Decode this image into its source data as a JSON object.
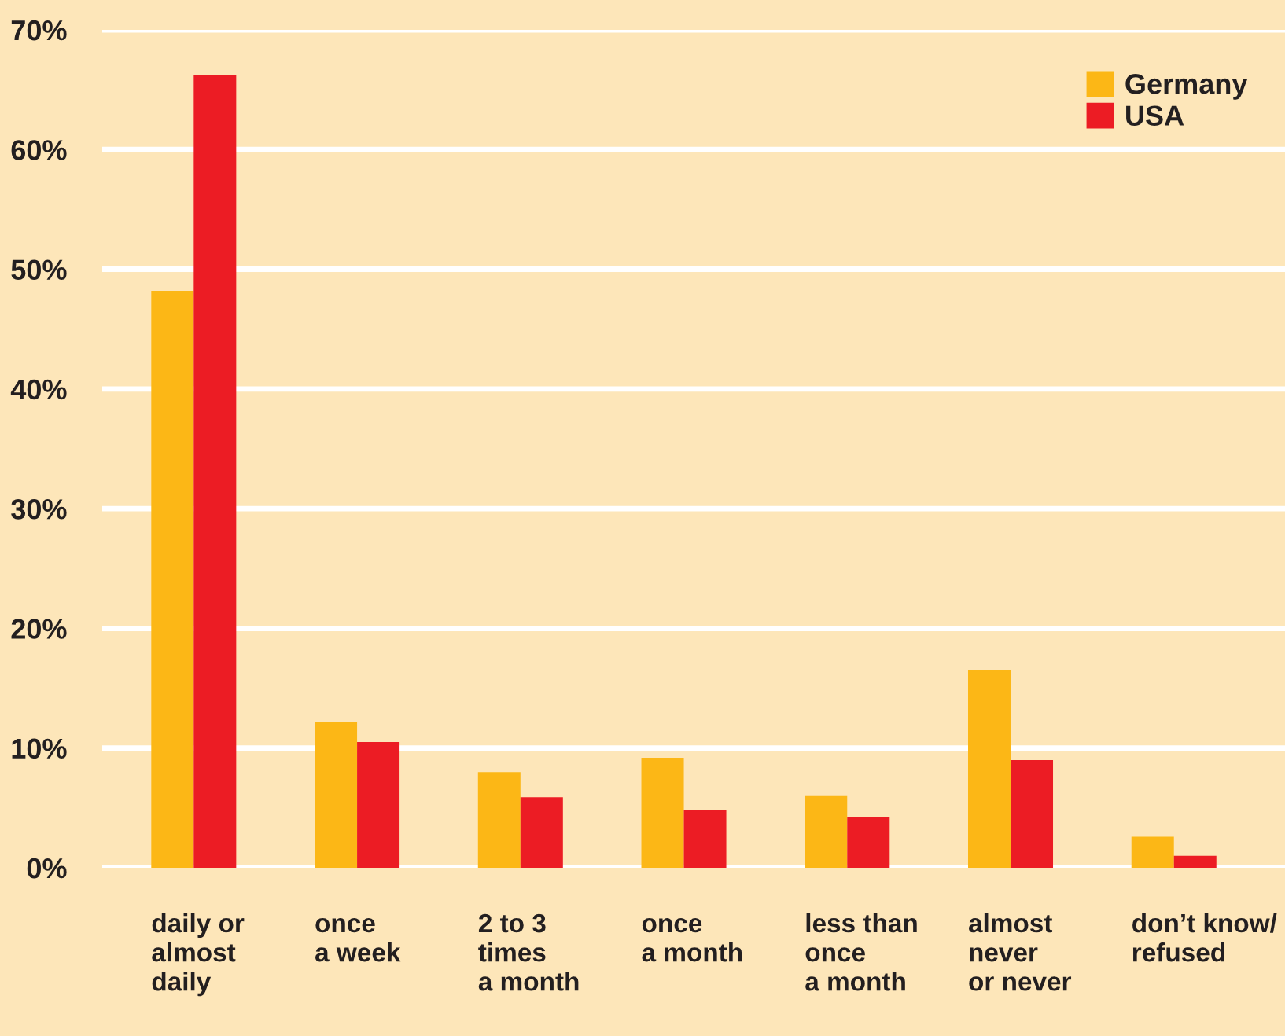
{
  "chart_data": {
    "type": "bar",
    "categories": [
      "daily or\nalmost\ndaily",
      "once\na week",
      "2 to 3\ntimes\na month",
      "once\na month",
      "less than\nonce\na month",
      "almost\nnever\nor never",
      "don’t know/\nrefused"
    ],
    "series": [
      {
        "name": "Germany",
        "color": "#fcb716",
        "values": [
          48.2,
          12.2,
          8.0,
          9.2,
          6.0,
          16.5,
          2.6
        ]
      },
      {
        "name": "USA",
        "color": "#ec1c24",
        "values": [
          66.2,
          10.5,
          5.9,
          4.8,
          4.2,
          9.0,
          1.0
        ]
      }
    ],
    "ylim": [
      0,
      70
    ],
    "yticks": [
      {
        "value": 0,
        "label": "0%"
      },
      {
        "value": 10,
        "label": "10%"
      },
      {
        "value": 20,
        "label": "20%"
      },
      {
        "value": 30,
        "label": "30%"
      },
      {
        "value": 40,
        "label": "40%"
      },
      {
        "value": 50,
        "label": "50%"
      },
      {
        "value": 60,
        "label": "60%"
      },
      {
        "value": 70,
        "label": "70%"
      }
    ],
    "grid": "y",
    "legend": "top right"
  }
}
